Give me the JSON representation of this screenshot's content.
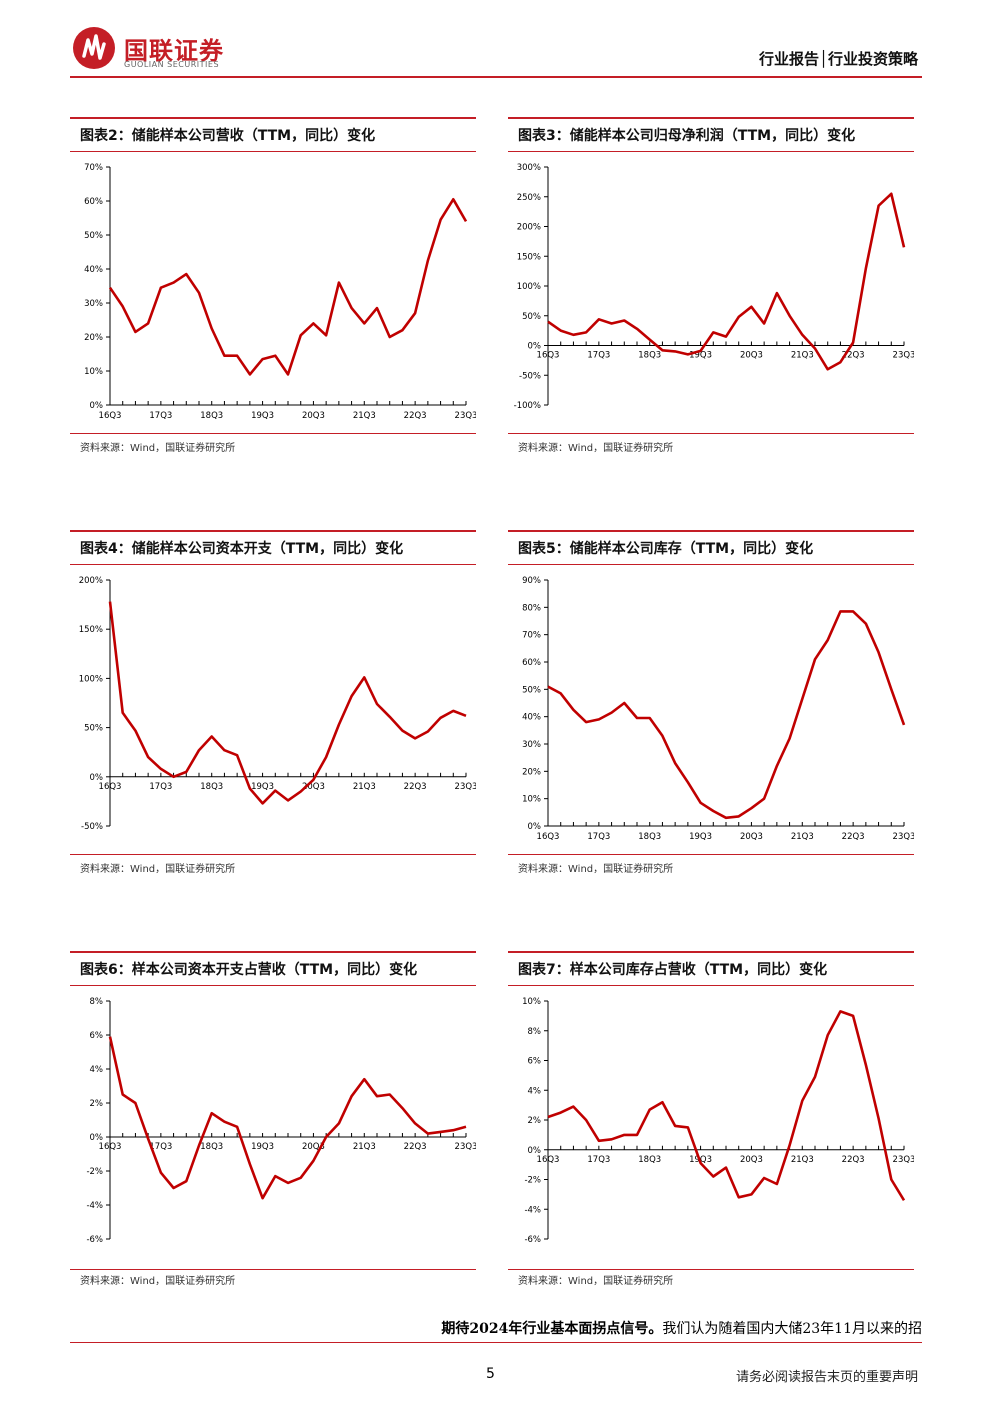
{
  "header": {
    "logo_cn": "国联证券",
    "logo_en": "GUOLIAN SECURITIES",
    "right": "行业报告│行业投资策略",
    "brand_color": "#c41e26"
  },
  "panels": [
    {
      "title": "图表2：储能样本公司营收（TTM，同比）变化",
      "source": "资料来源：Wind，国联证券研究所",
      "chart_data": {
        "type": "line",
        "ylim": [
          0,
          70
        ],
        "yticks": [
          0,
          10,
          20,
          30,
          40,
          50,
          60,
          70
        ],
        "ytick_labels": [
          "0%",
          "10%",
          "20%",
          "30%",
          "40%",
          "50%",
          "60%",
          "70%"
        ],
        "xtick_labels": [
          "16Q3",
          "17Q3",
          "18Q3",
          "19Q3",
          "20Q3",
          "21Q3",
          "22Q3",
          "23Q3"
        ],
        "x_label_every": 4,
        "series": [
          {
            "color": "#c00000",
            "values": [
              34.5,
              29,
              21.5,
              24,
              34.5,
              36,
              38.5,
              33,
              22.5,
              14.5,
              14.5,
              9,
              13.5,
              14.5,
              9,
              20.5,
              24,
              20.5,
              36,
              28.5,
              24,
              28.5,
              20,
              22,
              27,
              42.5,
              54.5,
              60.5,
              54
            ]
          }
        ]
      }
    },
    {
      "title": "图表3：储能样本公司归母净利润（TTM，同比）变化",
      "source": "资料来源：Wind，国联证券研究所",
      "chart_data": {
        "type": "line",
        "ylim": [
          -100,
          300
        ],
        "yticks": [
          -100,
          -50,
          0,
          50,
          100,
          150,
          200,
          250,
          300
        ],
        "ytick_labels": [
          "-100%",
          "-50%",
          "0%",
          "50%",
          "100%",
          "150%",
          "200%",
          "250%",
          "300%"
        ],
        "xtick_labels": [
          "16Q3",
          "17Q3",
          "18Q3",
          "19Q3",
          "20Q3",
          "21Q3",
          "22Q3",
          "23Q3"
        ],
        "x_label_every": 4,
        "series": [
          {
            "color": "#c00000",
            "values": [
              40,
              25,
              18,
              22,
              44,
              37,
              42,
              28,
              10,
              -8,
              -10,
              -15,
              -9,
              22,
              15,
              48,
              65,
              37,
              88,
              50,
              18,
              -5,
              -40,
              -28,
              5,
              130,
              235,
              255,
              165
            ]
          }
        ]
      }
    },
    {
      "title": "图表4：储能样本公司资本开支（TTM，同比）变化",
      "source": "资料来源：Wind，国联证券研究所",
      "chart_data": {
        "type": "line",
        "ylim": [
          -50,
          200
        ],
        "yticks": [
          -50,
          0,
          50,
          100,
          150,
          200
        ],
        "ytick_labels": [
          "-50%",
          "0%",
          "50%",
          "100%",
          "150%",
          "200%"
        ],
        "xtick_labels": [
          "16Q3",
          "17Q3",
          "18Q3",
          "19Q3",
          "20Q3",
          "21Q3",
          "22Q3",
          "23Q3"
        ],
        "x_label_every": 4,
        "series": [
          {
            "color": "#c00000",
            "values": [
              178,
              65,
              47,
              20,
              8,
              0,
              5,
              27,
              41,
              27,
              22,
              -12,
              -27,
              -14,
              -24,
              -15,
              -3,
              20,
              53,
              82,
              101,
              74,
              61,
              47,
              39,
              46,
              60,
              67,
              62
            ]
          }
        ]
      }
    },
    {
      "title": "图表5：储能样本公司库存（TTM，同比）变化",
      "source": "资料来源：Wind，国联证券研究所",
      "chart_data": {
        "type": "line",
        "ylim": [
          0,
          90
        ],
        "yticks": [
          0,
          10,
          20,
          30,
          40,
          50,
          60,
          70,
          80,
          90
        ],
        "ytick_labels": [
          "0%",
          "10%",
          "20%",
          "30%",
          "40%",
          "50%",
          "60%",
          "70%",
          "80%",
          "90%"
        ],
        "xtick_labels": [
          "16Q3",
          "17Q3",
          "18Q3",
          "19Q3",
          "20Q3",
          "21Q3",
          "22Q3",
          "23Q3"
        ],
        "x_label_every": 4,
        "series": [
          {
            "color": "#c00000",
            "values": [
              51,
              48.5,
              42.5,
              38,
              39,
              41.5,
              45,
              39.5,
              39.5,
              33,
              23,
              16,
              8.5,
              5.5,
              3,
              3.5,
              6.5,
              10,
              22,
              32,
              46.5,
              61,
              68,
              78.5,
              78.5,
              74,
              63.5,
              50,
              37
            ]
          }
        ]
      }
    },
    {
      "title": "图表6：样本公司资本开支占营收（TTM，同比）变化",
      "source": "资料来源：Wind，国联证券研究所",
      "chart_data": {
        "type": "line",
        "ylim": [
          -6,
          8
        ],
        "yticks": [
          -6,
          -4,
          -2,
          0,
          2,
          4,
          6,
          8
        ],
        "ytick_labels": [
          "-6%",
          "-4%",
          "-2%",
          "0%",
          "2%",
          "4%",
          "6%",
          "8%"
        ],
        "xtick_labels": [
          "16Q3",
          "17Q3",
          "18Q3",
          "19Q3",
          "20Q3",
          "21Q3",
          "22Q3",
          "23Q3"
        ],
        "x_label_every": 4,
        "series": [
          {
            "color": "#c00000",
            "values": [
              5.9,
              2.5,
              2.0,
              -0.1,
              -2.1,
              -3.0,
              -2.6,
              -0.5,
              1.4,
              0.9,
              0.6,
              -1.6,
              -3.6,
              -2.3,
              -2.7,
              -2.4,
              -1.4,
              0.0,
              0.8,
              2.4,
              3.4,
              2.4,
              2.5,
              1.7,
              0.8,
              0.2,
              0.3,
              0.4,
              0.6
            ]
          }
        ]
      }
    },
    {
      "title": "图表7：样本公司库存占营收（TTM，同比）变化",
      "source": "资料来源：Wind，国联证券研究所",
      "chart_data": {
        "type": "line",
        "ylim": [
          -6,
          10
        ],
        "yticks": [
          -6,
          -4,
          -2,
          0,
          2,
          4,
          6,
          8,
          10
        ],
        "ytick_labels": [
          "-6%",
          "-4%",
          "-2%",
          "0%",
          "2%",
          "4%",
          "6%",
          "8%",
          "10%"
        ],
        "xtick_labels": [
          "16Q3",
          "17Q3",
          "18Q3",
          "19Q3",
          "20Q3",
          "21Q3",
          "22Q3",
          "23Q3"
        ],
        "x_label_every": 4,
        "series": [
          {
            "color": "#c00000",
            "values": [
              2.2,
              2.5,
              2.9,
              2.0,
              0.6,
              0.7,
              1.0,
              1.0,
              2.7,
              3.2,
              1.6,
              1.5,
              -0.9,
              -1.8,
              -1.2,
              -3.2,
              -3.0,
              -1.9,
              -2.3,
              0.3,
              3.3,
              4.9,
              7.7,
              9.3,
              9.0,
              5.7,
              2.1,
              -2.0,
              -3.4
            ]
          }
        ]
      }
    }
  ],
  "body_text": {
    "bold": "期待2024年行业基本面拐点信号。",
    "normal": "我们认为随着国内大储23年11月以来的招"
  },
  "footer": {
    "page_number": "5",
    "disclaimer": "请务必阅读报告末页的重要声明"
  }
}
